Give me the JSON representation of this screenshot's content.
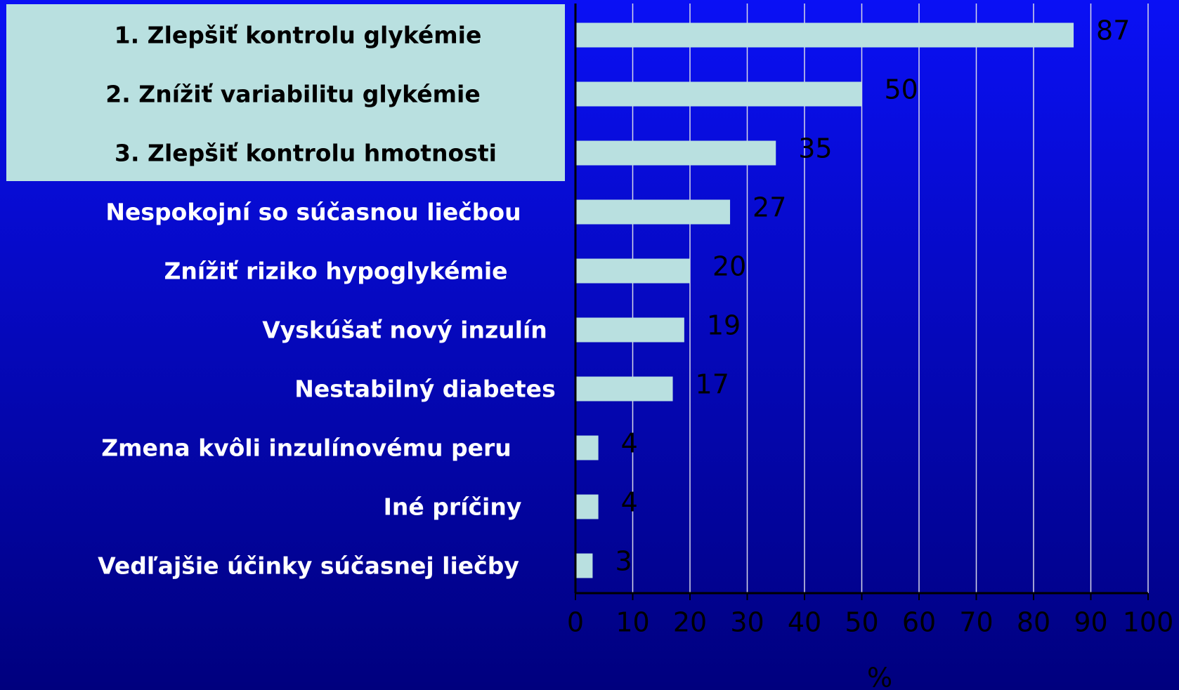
{
  "chart_data": {
    "type": "hbar",
    "categories": [
      "1. Zlepšiť kontrolu glykémie",
      "2. Znížiť variabilitu glykémie",
      "3. Zlepšiť kontrolu hmotnosti",
      "Nespokojní so súčasnou liečbou",
      "Znížiť riziko hypoglykémie",
      "Vyskúšať nový inzulín",
      "Nestabilný diabetes",
      "Zmena kvôli inzulínovému peru",
      "Iné príčiny",
      "Vedľajšie účinky súčasnej liečby"
    ],
    "values": [
      87,
      50,
      35,
      27,
      20,
      19,
      17,
      4,
      4,
      3
    ],
    "color": "#b9e0e0",
    "xlim": [
      0,
      100
    ],
    "xticks": [
      0,
      10,
      20,
      30,
      40,
      50,
      60,
      70,
      80,
      90,
      100
    ],
    "x_label": "%",
    "grid": true
  }
}
